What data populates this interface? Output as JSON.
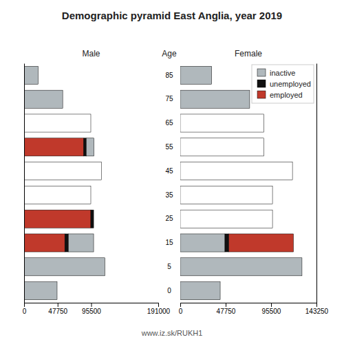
{
  "title": "Demographic pyramid East Anglia, year 2019",
  "subtitle": "www.iz.sk/RUKH1",
  "chart_data": [
    {
      "type": "bar",
      "orientation": "horizontal",
      "stacked": true,
      "grid": false,
      "title": "Male",
      "ylabel": "Age",
      "categories": [
        "85",
        "75",
        "65",
        "55",
        "45",
        "35",
        "25",
        "15",
        "5",
        "0"
      ],
      "series": [
        {
          "name": "employed",
          "color": "#c0392b",
          "colors": [
            "white",
            "white",
            "white",
            "#c0392b",
            "white",
            "white",
            "#c0392b",
            "#c0392b",
            "white",
            "white"
          ],
          "values": [
            0,
            0,
            95000,
            85000,
            110000,
            95000,
            95000,
            58000,
            0,
            0
          ]
        },
        {
          "name": "unemployed",
          "color": "#111111",
          "values": [
            0,
            0,
            0,
            3500,
            0,
            0,
            4000,
            5000,
            0,
            0
          ]
        },
        {
          "name": "inactive",
          "color": "#b0b8bc",
          "values": [
            20000,
            55000,
            0,
            11000,
            0,
            0,
            0,
            36000,
            115000,
            47000
          ]
        }
      ],
      "xlim": [
        0,
        191000
      ],
      "xticks": [
        0,
        47750,
        95500,
        191000
      ]
    },
    {
      "type": "bar",
      "orientation": "horizontal",
      "stacked": true,
      "grid": false,
      "title": "Female",
      "tick_labels": "x",
      "legend": "upper right",
      "categories": [
        "85",
        "75",
        "65",
        "55",
        "45",
        "35",
        "25",
        "15",
        "5",
        "0"
      ],
      "series": [
        {
          "name": "inactive",
          "color": "#b0b8bc",
          "values": [
            33000,
            73000,
            0,
            0,
            0,
            0,
            0,
            47000,
            128000,
            42000
          ]
        },
        {
          "name": "unemployed",
          "color": "#111111",
          "values": [
            0,
            0,
            0,
            0,
            0,
            0,
            0,
            4000,
            0,
            0
          ]
        },
        {
          "name": "employed",
          "color": "#c0392b",
          "colors": [
            "white",
            "white",
            "white",
            "white",
            "white",
            "white",
            "white",
            "#c0392b",
            "white",
            "white"
          ],
          "values": [
            0,
            0,
            88000,
            88000,
            118000,
            97000,
            97000,
            68000,
            0,
            0
          ]
        }
      ],
      "xlim": [
        0,
        143250
      ],
      "xticks": [
        0,
        47750,
        95500,
        143250
      ]
    }
  ]
}
